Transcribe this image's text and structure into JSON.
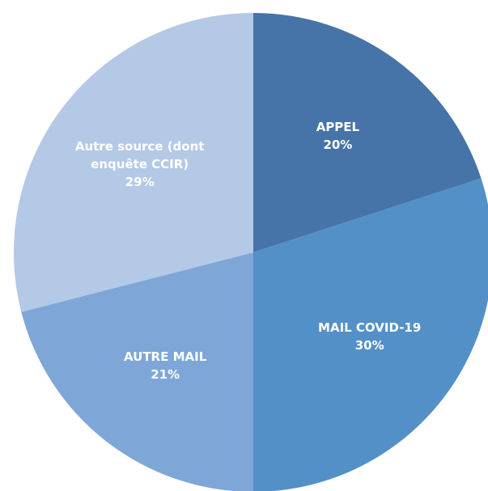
{
  "chart_data": {
    "type": "pie",
    "categories": [
      "APPEL",
      "MAIL COVID-19",
      "AUTRE MAIL",
      "Autre source (dont enquête CCIR)"
    ],
    "values": [
      20,
      30,
      21,
      29
    ],
    "value_labels": [
      "20%",
      "30%",
      "21%",
      "29%"
    ],
    "colors": [
      "#4674a8",
      "#5490c8",
      "#7ea7d8",
      "#b4c9e6"
    ]
  }
}
